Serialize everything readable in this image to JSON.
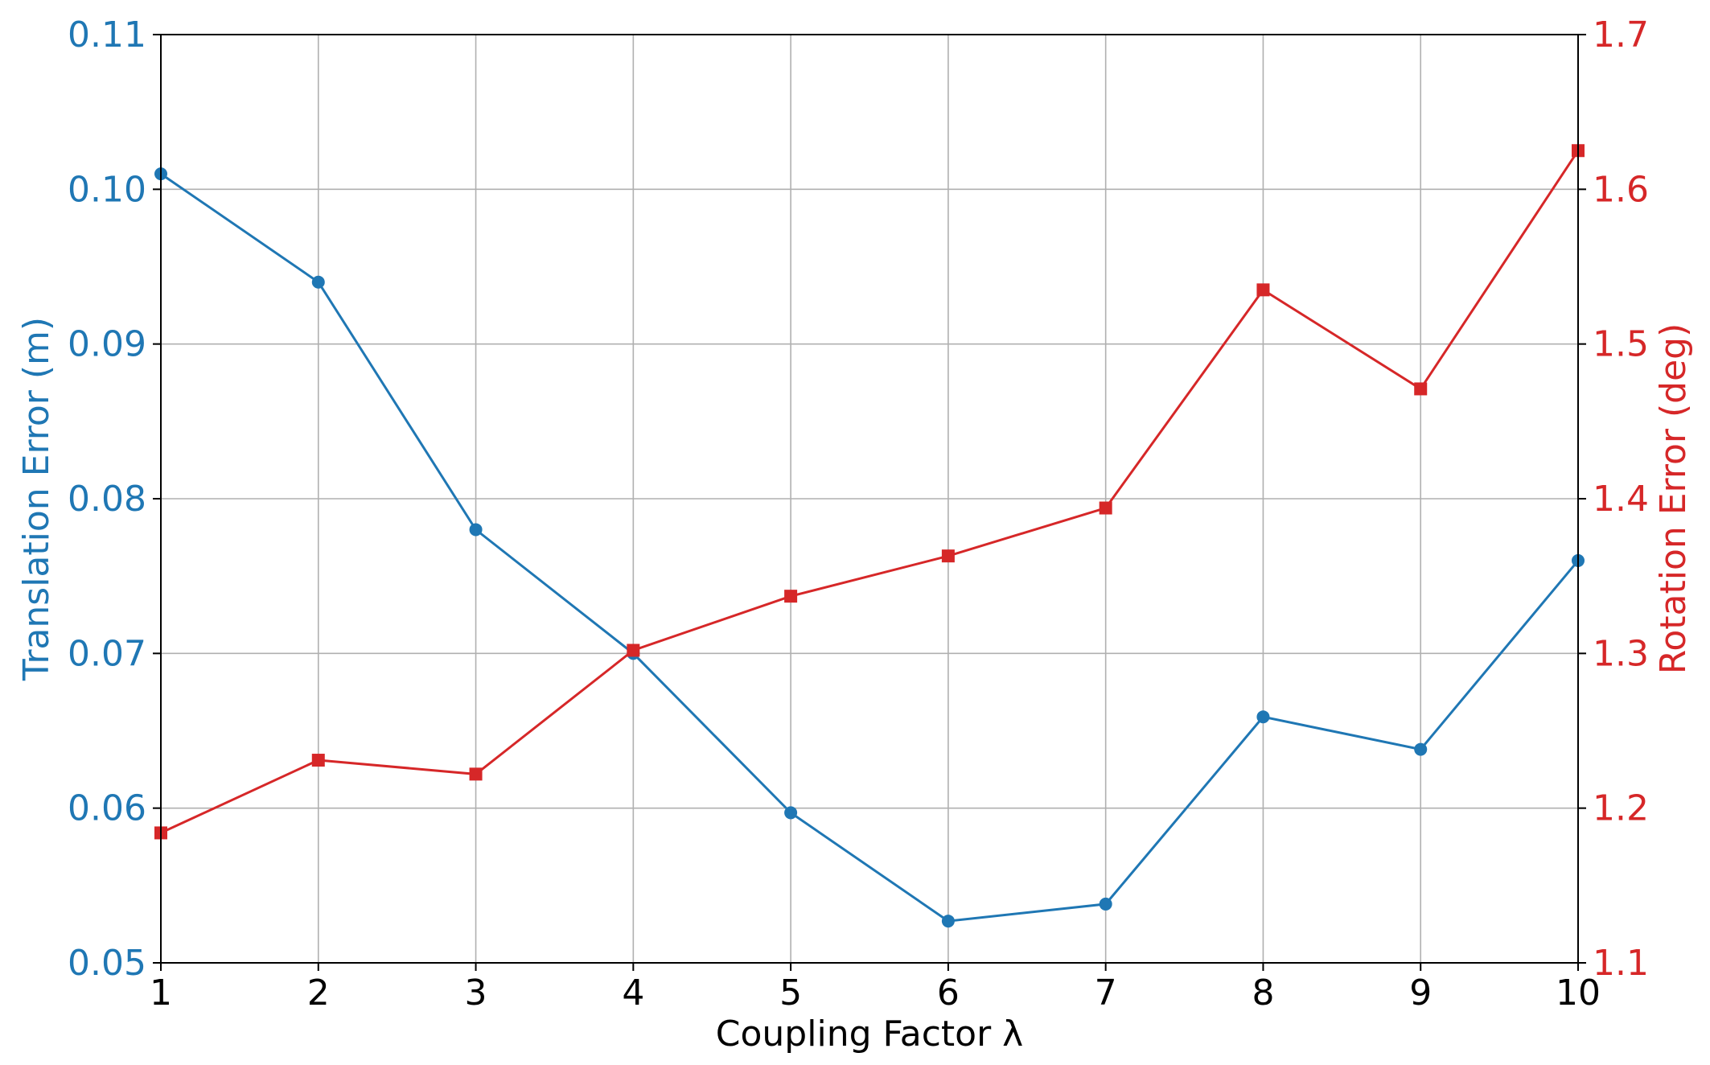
{
  "chart_data": {
    "type": "line",
    "title": "",
    "xlabel": "Coupling Factor λ",
    "x": [
      1,
      2,
      3,
      4,
      5,
      6,
      7,
      8,
      9,
      10
    ],
    "xlim": [
      1,
      10
    ],
    "xticks": [
      "1",
      "2",
      "3",
      "4",
      "5",
      "6",
      "7",
      "8",
      "9",
      "10"
    ],
    "grid": true,
    "axes": {
      "left": {
        "label": "Translation Error (m)",
        "ylim": [
          0.05,
          0.11
        ],
        "ticks": [
          "0.05",
          "0.06",
          "0.07",
          "0.08",
          "0.09",
          "0.10",
          "0.11"
        ],
        "color": "#1f77b4"
      },
      "right": {
        "label": "Rotation Error (deg)",
        "ylim": [
          1.1,
          1.7
        ],
        "ticks": [
          "1.1",
          "1.2",
          "1.3",
          "1.4",
          "1.5",
          "1.6",
          "1.7"
        ],
        "color": "#d62728"
      }
    },
    "series": [
      {
        "axis": "left",
        "marker": "circle",
        "color": "#1f77b4",
        "values": [
          0.101,
          0.094,
          0.078,
          0.07,
          0.0597,
          0.0527,
          0.0538,
          0.0659,
          0.0638,
          0.076
        ]
      },
      {
        "axis": "right",
        "marker": "square",
        "color": "#d62728",
        "values": [
          1.184,
          1.231,
          1.222,
          1.302,
          1.337,
          1.363,
          1.394,
          1.535,
          1.471,
          1.625
        ]
      }
    ]
  }
}
